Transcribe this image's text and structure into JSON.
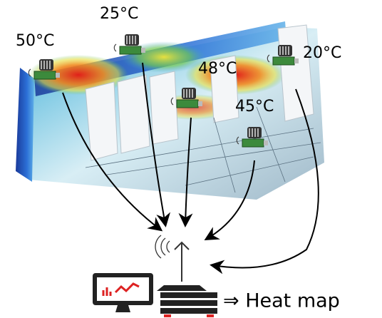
{
  "sensors": [
    {
      "label": "50°C"
    },
    {
      "label": "25°C"
    },
    {
      "label": "48°C"
    },
    {
      "label": "45°C"
    },
    {
      "label": "20°C"
    }
  ],
  "output": {
    "label": "⇒ Heat map"
  }
}
